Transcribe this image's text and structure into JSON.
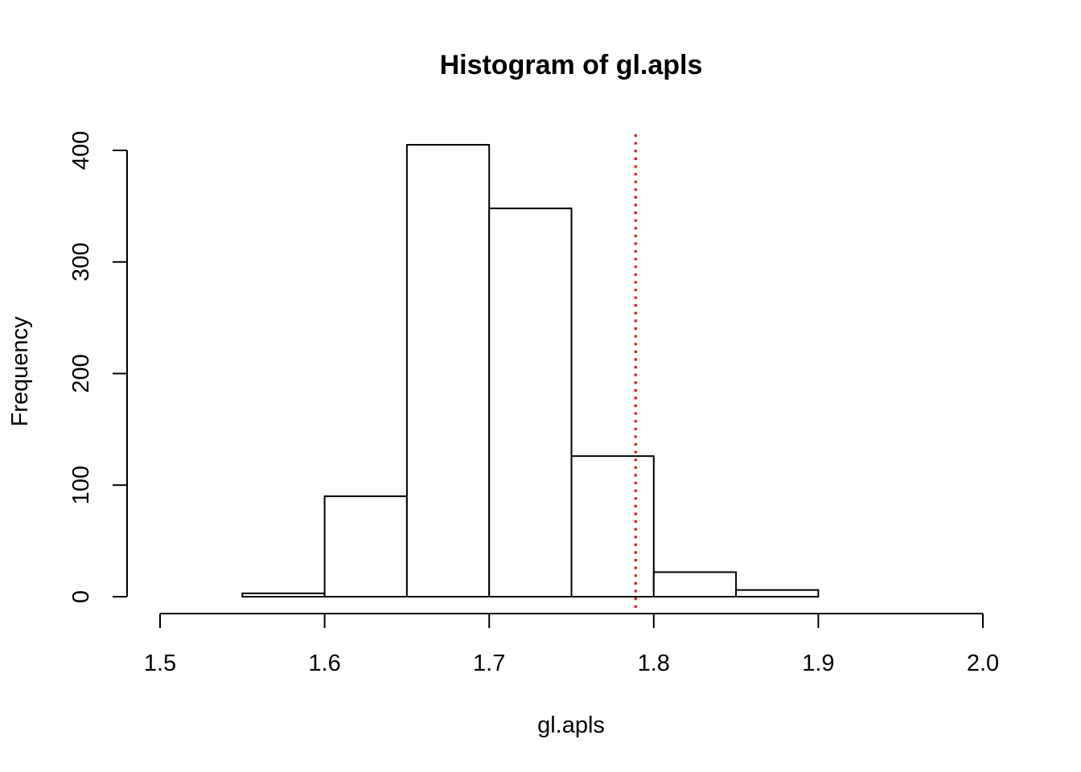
{
  "chart_data": {
    "type": "bar",
    "title": "Histogram of gl.apls",
    "xlabel": "gl.apls",
    "ylabel": "Frequency",
    "xlim": [
      1.5,
      2.0
    ],
    "ylim": [
      0,
      400
    ],
    "x_ticks": [
      "1.5",
      "1.6",
      "1.7",
      "1.8",
      "1.9",
      "2.0"
    ],
    "y_ticks": [
      "0",
      "100",
      "200",
      "300",
      "400"
    ],
    "bins": [
      {
        "start": 1.55,
        "end": 1.6,
        "count": 3
      },
      {
        "start": 1.6,
        "end": 1.65,
        "count": 90
      },
      {
        "start": 1.65,
        "end": 1.7,
        "count": 405
      },
      {
        "start": 1.7,
        "end": 1.75,
        "count": 348
      },
      {
        "start": 1.75,
        "end": 1.8,
        "count": 126
      },
      {
        "start": 1.8,
        "end": 1.85,
        "count": 22
      },
      {
        "start": 1.85,
        "end": 1.9,
        "count": 6
      }
    ],
    "reference_line": {
      "x": 1.789,
      "style": "dotted",
      "color": "#e8141c"
    },
    "grid": false,
    "legend": "none"
  }
}
